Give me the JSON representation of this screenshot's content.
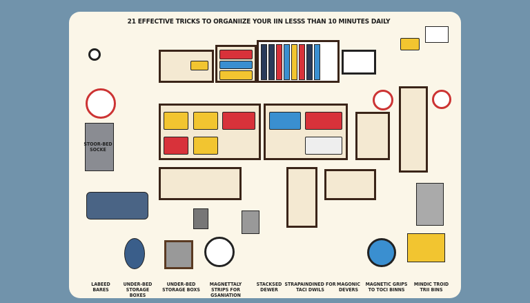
{
  "title": "21 EFFECTIVE TRICKS TO ORGANIIZE YOUR IIN LESSS THAN 10 MINUTES DAILY",
  "side_label": "STOOR-BED SOCKE",
  "captions": [
    "LABEED BARES",
    "UNDER-BED STORAGE BOXES",
    "UNDER-BED STORAGE BOXS",
    "MAGNETTALY STRIPS FOR GSANIATION",
    "STACKSED DEWER",
    "STRAPAINDINED FOR TACI DWILS",
    "MAGONIC DEVERS",
    "MAGNETIC GRIPS TO TOCI BINNS",
    "MINDIC TROID TRII BINS"
  ],
  "colors": {
    "background": "#7193ab",
    "card": "#fbf6e8",
    "shelf": "#3a2418",
    "yellow": "#f2c530",
    "red": "#d8323a",
    "blue": "#3a8fd0"
  }
}
